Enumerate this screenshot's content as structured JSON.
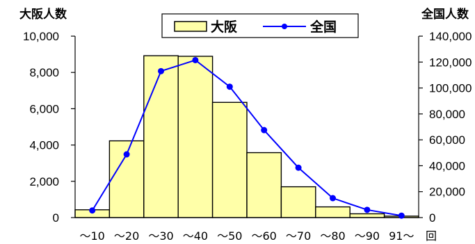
{
  "chart_data": {
    "type": "bar",
    "categories": [
      "～10",
      "～20",
      "～30",
      "～40",
      "～50",
      "～60",
      "～70",
      "～80",
      "～90",
      "91～"
    ],
    "x_unit_label": "回",
    "series": [
      {
        "name": "大阪",
        "type": "bar",
        "axis": "left",
        "color": "#ffffa8",
        "values": [
          430,
          4230,
          8920,
          8890,
          6350,
          3580,
          1700,
          590,
          210,
          80
        ]
      },
      {
        "name": "全国",
        "type": "line",
        "axis": "right",
        "color": "#0000ff",
        "values": [
          5500,
          48800,
          113000,
          121500,
          101000,
          67500,
          38500,
          15000,
          6000,
          1500
        ]
      }
    ],
    "y_left": {
      "label": "大阪人数",
      "ylim": [
        0,
        10000
      ],
      "ticks": [
        "0",
        "2,000",
        "4,000",
        "6,000",
        "8,000",
        "10,000"
      ]
    },
    "y_right": {
      "label": "全国人数",
      "ylim": [
        0,
        140000
      ],
      "ticks": [
        "0",
        "20,000",
        "40,000",
        "60,000",
        "80,000",
        "100,000",
        "120,000",
        "140,000"
      ]
    },
    "legend_position": "top-center",
    "grid": false
  }
}
